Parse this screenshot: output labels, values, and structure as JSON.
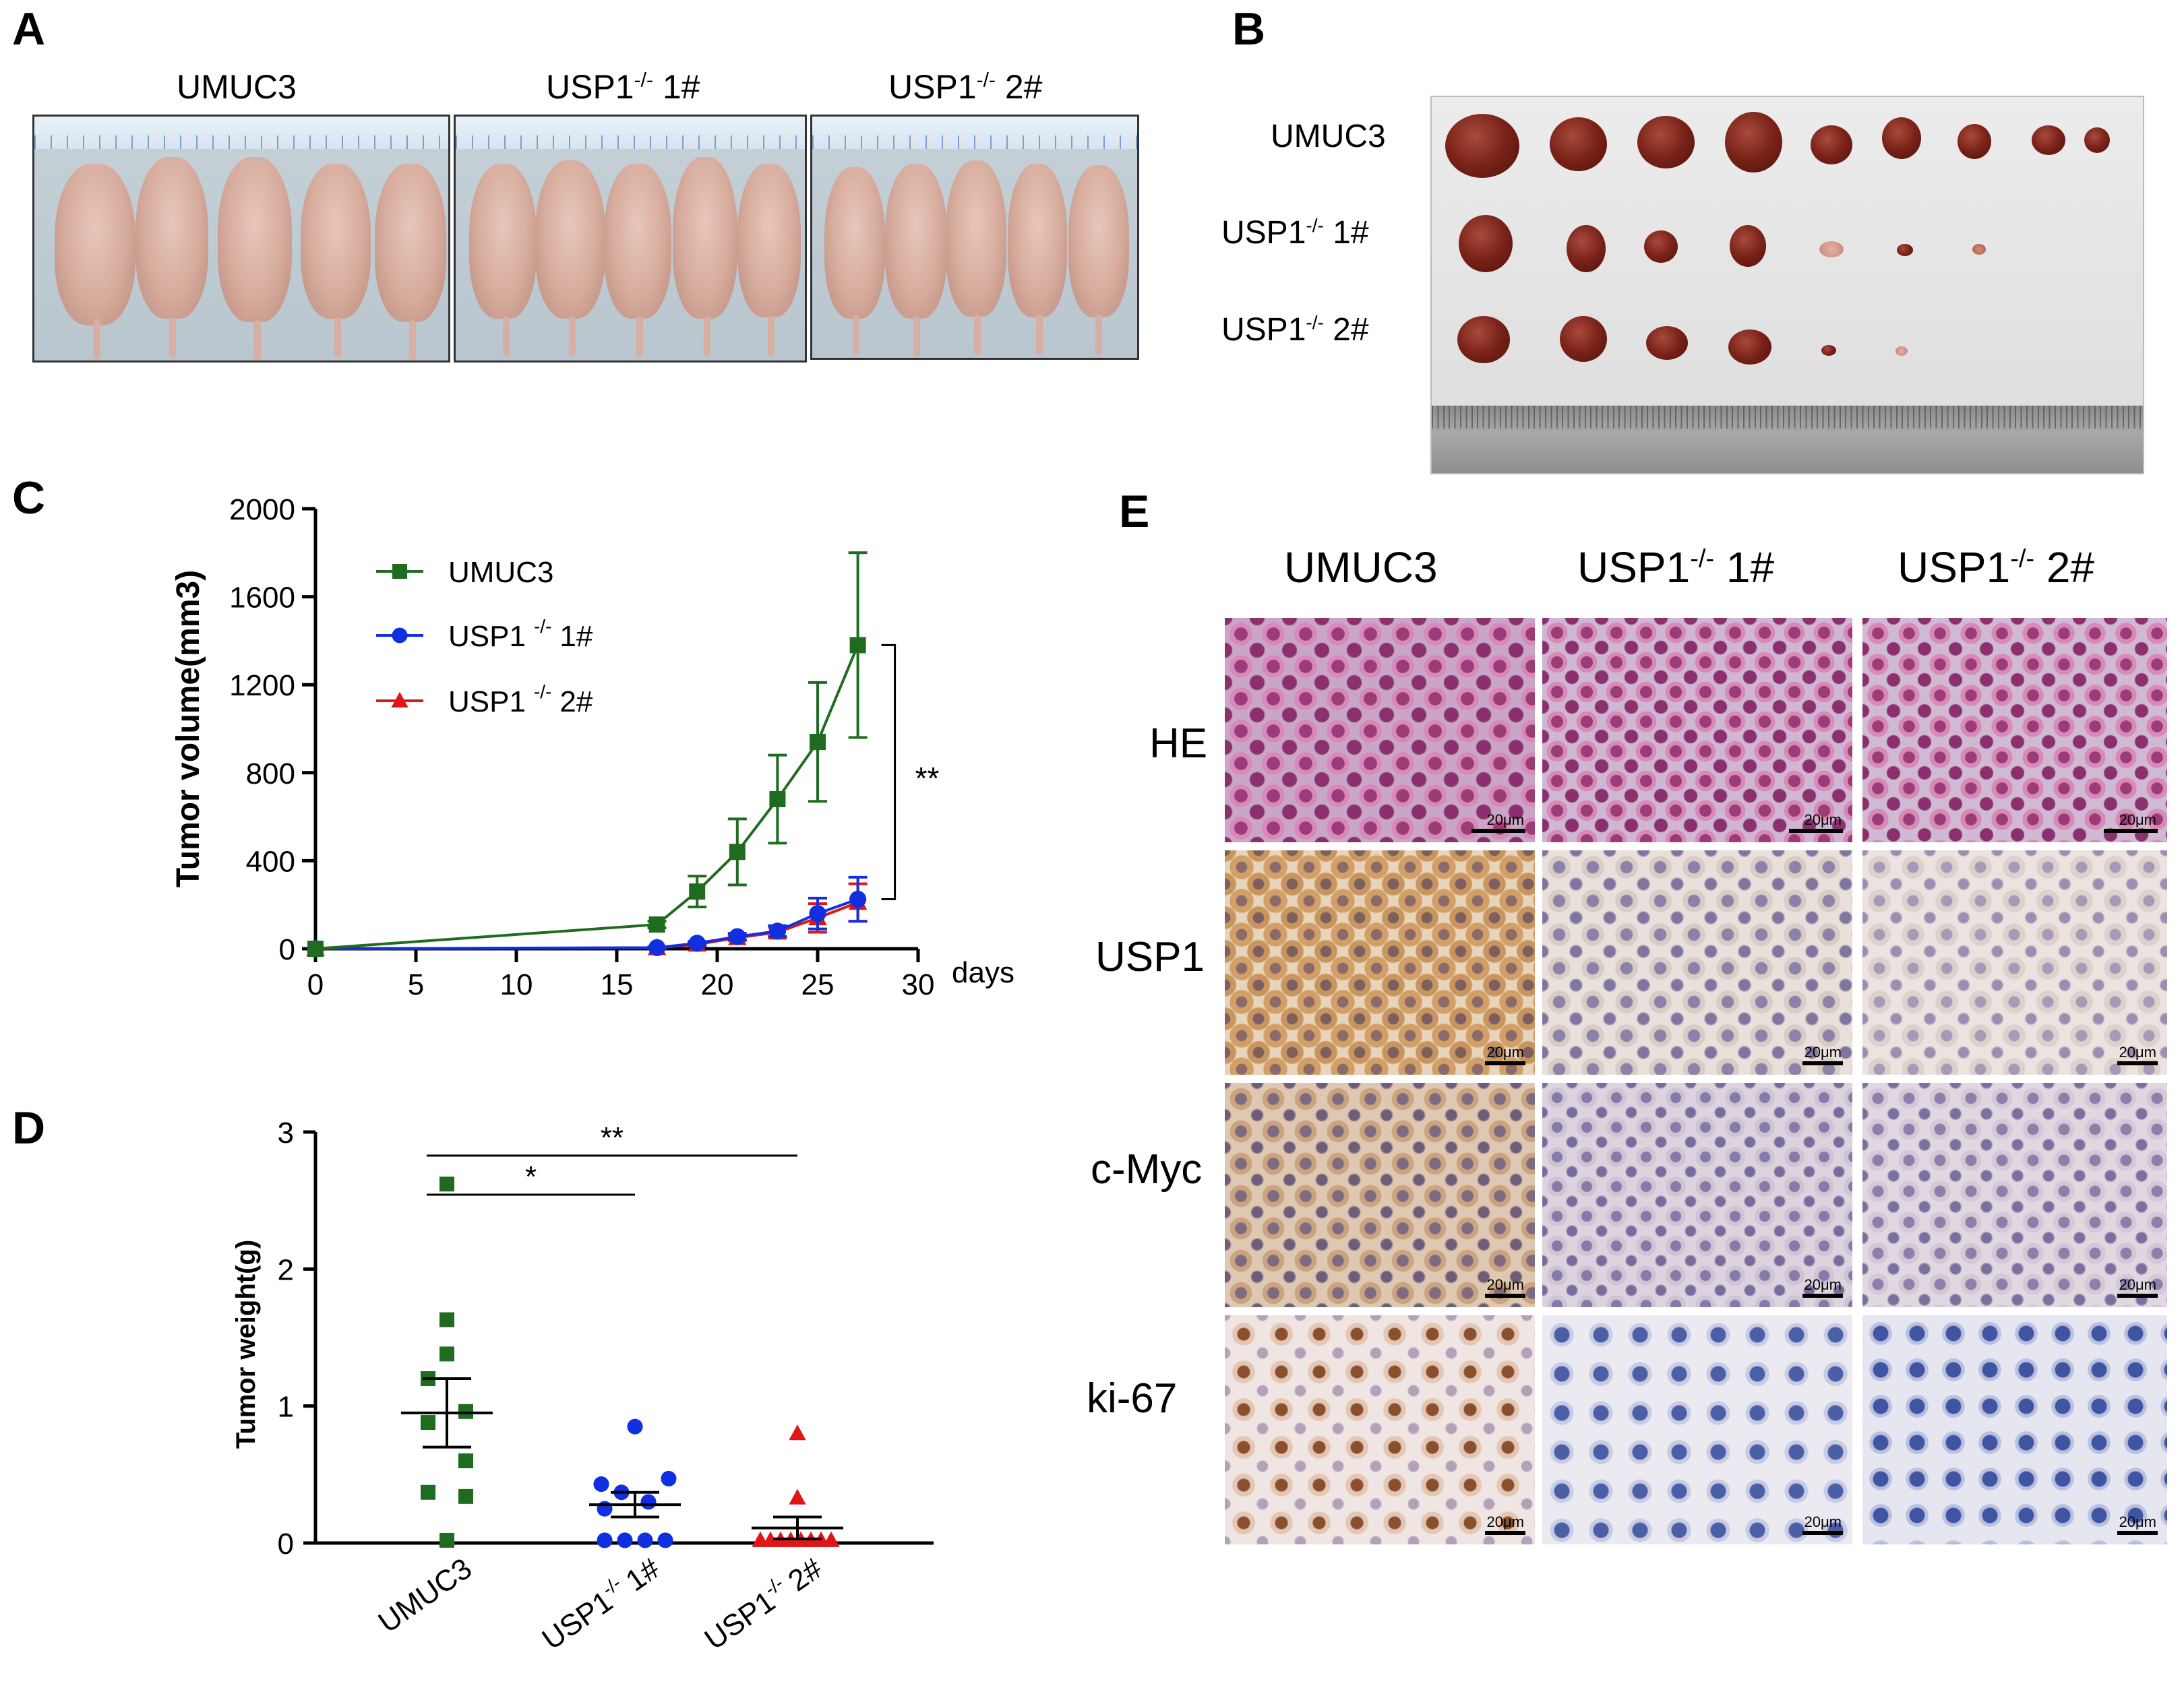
{
  "panels": {
    "a": "A",
    "b": "B",
    "c": "C",
    "d": "D",
    "e": "E"
  },
  "groups": {
    "umuc3": "UMUC3",
    "usp1_ko_1_base": "USP1",
    "usp1_ko_sup": "-/-",
    "ko_1_suffix": "1#",
    "ko_2_suffix": "2#"
  },
  "panel_e": {
    "rows": [
      "HE",
      "USP1",
      "c-Myc",
      "ki-67"
    ],
    "scale_label": "20μm"
  },
  "colors": {
    "umuc3": "#1f6b1f",
    "ko1": "#1030e0",
    "ko2": "#e01515"
  },
  "chart_data": [
    {
      "type": "line",
      "panel": "C",
      "ylabel": "Tumor volume(mm3)",
      "xlabel": "days",
      "xlim": [
        0,
        30
      ],
      "ylim": [
        0,
        2000
      ],
      "xticks": [
        0,
        5,
        10,
        15,
        20,
        25,
        30
      ],
      "yticks": [
        0,
        400,
        800,
        1200,
        1600,
        2000
      ],
      "significance": "**",
      "series": [
        {
          "name": "UMUC3",
          "marker": "square",
          "x": [
            0,
            17,
            19,
            21,
            23,
            25,
            27
          ],
          "values": [
            0,
            110,
            260,
            440,
            680,
            940,
            1380
          ],
          "errors": [
            0,
            15,
            70,
            150,
            200,
            270,
            420
          ]
        },
        {
          "name": "USP1 -/- 1#",
          "marker": "circle",
          "x": [
            0,
            17,
            19,
            21,
            23,
            25,
            27
          ],
          "values": [
            0,
            5,
            25,
            55,
            80,
            160,
            225
          ],
          "errors": [
            0,
            4,
            8,
            15,
            25,
            70,
            100
          ]
        },
        {
          "name": "USP1 -/- 2#",
          "marker": "triangle",
          "x": [
            0,
            17,
            19,
            21,
            23,
            25,
            27
          ],
          "values": [
            0,
            4,
            20,
            50,
            75,
            140,
            210
          ],
          "errors": [
            0,
            3,
            8,
            12,
            22,
            65,
            85
          ]
        }
      ]
    },
    {
      "type": "scatter",
      "panel": "D",
      "ylabel": "Tumor weight(g)",
      "ylim": [
        0,
        3
      ],
      "yticks": [
        0,
        1,
        2,
        3
      ],
      "categories": [
        "UMUC3",
        "USP1-/- 1#",
        "USP1-/- 2#"
      ],
      "comparisons": [
        {
          "from": "UMUC3",
          "to": "USP1-/- 1#",
          "label": "*"
        },
        {
          "from": "UMUC3",
          "to": "USP1-/- 2#",
          "label": "**"
        }
      ],
      "series": [
        {
          "name": "UMUC3",
          "marker": "square",
          "mean": 0.95,
          "sem": 0.25,
          "values": [
            2.62,
            1.63,
            1.38,
            1.2,
            0.96,
            0.88,
            0.6,
            0.37,
            0.34,
            0.02
          ]
        },
        {
          "name": "USP1-/- 1#",
          "marker": "circle",
          "mean": 0.28,
          "sem": 0.09,
          "values": [
            0.85,
            0.47,
            0.43,
            0.37,
            0.3,
            0.25,
            0.02,
            0.02,
            0.02,
            0.02
          ]
        },
        {
          "name": "USP1-/- 2#",
          "marker": "triangle",
          "mean": 0.11,
          "sem": 0.08,
          "values": [
            0.8,
            0.33,
            0.02,
            0.02,
            0.02,
            0.02,
            0.02,
            0.02,
            0.02,
            0.02
          ]
        }
      ]
    }
  ]
}
